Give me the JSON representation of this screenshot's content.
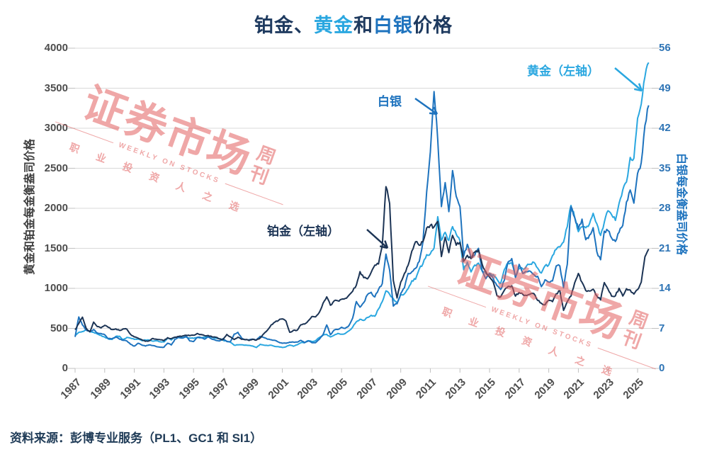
{
  "title": {
    "segments": [
      {
        "text": "铂金、",
        "color": "#1e3a5f"
      },
      {
        "text": "黄金",
        "color": "#2aa7e0"
      },
      {
        "text": "和",
        "color": "#1e3a5f"
      },
      {
        "text": "白银",
        "color": "#1e73be"
      },
      {
        "text": "价格",
        "color": "#1e3a5f"
      }
    ]
  },
  "colors": {
    "platinum": "#1c3455",
    "gold": "#2aa7e0",
    "silver": "#1e73be",
    "grid": "#d9d9d9",
    "axis_line": "#c0c0c0",
    "axis_text": "#4d4d4d",
    "right_axis_text": "#2e74b5",
    "watermark": "#e26060",
    "source_text": "#1f3b57"
  },
  "source": "资料来源：彭博专业服务（PL1、GC1 和 SI1）",
  "watermark": {
    "main": "证券市场",
    "suffix": "周刊",
    "subtitle": "WEEKLY ON STOCKS",
    "tagline": "职业投资人之选"
  },
  "chart_data": {
    "type": "line",
    "title": "铂金、黄金和白银价格",
    "x_start": 1987,
    "x_step_years": 0.25,
    "x_tick_labels": [
      "1987",
      "1989",
      "1991",
      "1993",
      "1995",
      "1997",
      "1999",
      "2001",
      "2003",
      "2005",
      "2007",
      "2009",
      "2011",
      "2013",
      "2015",
      "2017",
      "2019",
      "2021",
      "2023",
      "2025"
    ],
    "left_axis": {
      "label": "黄金和铂金每金衡盎司价格",
      "min": 0,
      "max": 4000,
      "ticks": [
        0,
        500,
        1000,
        1500,
        2000,
        2500,
        3000,
        3500,
        4000
      ]
    },
    "right_axis": {
      "label": "白银每金衡盎司价格",
      "min": 0,
      "max": 56,
      "ticks": [
        0,
        7,
        14,
        21,
        28,
        35,
        42,
        49,
        56
      ]
    },
    "grid": true,
    "series": [
      {
        "name": "铂金（左轴）",
        "axis": "left",
        "color": "#1c3455",
        "values": [
          483,
          560,
          640,
          500,
          458,
          578,
          522,
          505,
          538,
          512,
          486,
          494,
          474,
          494,
          489,
          424,
          394,
          379,
          358,
          339,
          344,
          374,
          364,
          358,
          346,
          384,
          372,
          390,
          399,
          404,
          414,
          409,
          414,
          436,
          424,
          409,
          411,
          394,
          389,
          369,
          359,
          424,
          394,
          361,
          389,
          364,
          359,
          349,
          364,
          354,
          379,
          434,
          479,
          544,
          579,
          601,
          619,
          589,
          451,
          476,
          476,
          544,
          554,
          594,
          649,
          644,
          701,
          814,
          894,
          789,
          844,
          844,
          864,
          874,
          914,
          964,
          1039,
          1209,
          1134,
          1119,
          1199,
          1289,
          1304,
          1529,
          2270,
          2060,
          1100,
          880,
          1078,
          1186,
          1289,
          1466,
          1582,
          1538,
          1581,
          1755,
          1788,
          1768,
          1836,
          1397,
          1639,
          1446,
          1662,
          1539,
          1576,
          1338,
          1412,
          1371,
          1453,
          1480,
          1301,
          1209,
          1139,
          1078,
          908,
          893,
          976,
          1024,
          1032,
          903,
          949,
          924,
          911,
          928,
          934,
          849,
          814,
          794,
          852,
          834,
          932,
          971,
          725,
          835,
          903,
          1068,
          1186,
          1075,
          972,
          966,
          989,
          906,
          856,
          1072,
          991,
          902,
          906,
          1001,
          904,
          996,
          979,
          928,
          983,
          1078,
          1395,
          1492
        ]
      },
      {
        "name": "黄金（左轴）",
        "axis": "left",
        "color": "#2aa7e0",
        "values": [
          408,
          450,
          460,
          485,
          455,
          450,
          430,
          412,
          390,
          368,
          362,
          400,
          402,
          358,
          388,
          378,
          363,
          368,
          348,
          355,
          354,
          340,
          345,
          333,
          330,
          378,
          355,
          390,
          385,
          386,
          391,
          380,
          375,
          387,
          384,
          387,
          400,
          387,
          380,
          369,
          352,
          340,
          325,
          290,
          295,
          296,
          291,
          288,
          280,
          261,
          301,
          290,
          286,
          289,
          274,
          271,
          261,
          271,
          291,
          277,
          295,
          320,
          321,
          346,
          335,
          346,
          385,
          415,
          425,
          393,
          415,
          437,
          427,
          436,
          470,
          516,
          582,
          614,
          599,
          636,
          664,
          651,
          742,
          834,
          968,
          926,
          872,
          815,
          920,
          932,
          996,
          1095,
          1114,
          1242,
          1307,
          1420,
          1432,
          1502,
          1895,
          1600,
          1700,
          1598,
          1771,
          1676,
          1595,
          1232,
          1328,
          1205,
          1291,
          1315,
          1216,
          1184,
          1184,
          1171,
          1114,
          1061,
          1234,
          1321,
          1316,
          1152,
          1249,
          1242,
          1281,
          1303,
          1325,
          1252,
          1192,
          1282,
          1292,
          1410,
          1486,
          1517,
          1577,
          1771,
          2035,
          1888,
          1708,
          1770,
          1757,
          1806,
          1937,
          1807,
          1661,
          1824,
          1969,
          1919,
          1849,
          2063,
          2230,
          2327,
          2635,
          2625,
          3124,
          3303,
          3643,
          3820
        ]
      },
      {
        "name": "白银",
        "axis": "right",
        "color": "#1e73be",
        "values": [
          5.5,
          9.0,
          7.6,
          6.7,
          6.4,
          6.8,
          6.2,
          6.1,
          5.9,
          5.2,
          5.2,
          5.5,
          5.1,
          4.9,
          4.8,
          4.2,
          3.9,
          4.4,
          4.1,
          3.9,
          4.1,
          4.0,
          3.8,
          3.7,
          3.7,
          4.4,
          4.1,
          5.1,
          5.5,
          5.3,
          5.6,
          4.8,
          4.7,
          5.4,
          5.4,
          5.1,
          5.5,
          5.1,
          4.9,
          4.8,
          5.2,
          4.7,
          4.7,
          6.0,
          6.3,
          5.3,
          5.0,
          5.0,
          5.1,
          5.0,
          5.6,
          5.4,
          5.1,
          5.0,
          4.9,
          4.6,
          4.4,
          4.4,
          4.6,
          4.6,
          4.6,
          4.9,
          4.5,
          4.8,
          4.5,
          4.5,
          5.1,
          5.9,
          7.6,
          5.9,
          6.7,
          6.8,
          7.2,
          7.0,
          7.5,
          8.8,
          11.7,
          10.7,
          11.5,
          12.9,
          13.3,
          12.5,
          13.8,
          14.8,
          20.0,
          17.2,
          10.9,
          11.3,
          13.1,
          14.1,
          16.6,
          16.9,
          17.5,
          18.7,
          22.1,
          30.9,
          37.9,
          48.4,
          40.0,
          28.3,
          32.5,
          27.4,
          34.6,
          30.1,
          28.3,
          19.6,
          21.7,
          19.4,
          19.8,
          21.0,
          17.1,
          15.7,
          16.6,
          15.7,
          14.5,
          13.8,
          15.4,
          18.6,
          19.2,
          15.9,
          18.2,
          16.6,
          16.9,
          17.0,
          16.4,
          16.1,
          14.3,
          15.5,
          15.1,
          15.3,
          17.9,
          17.9,
          14.1,
          18.2,
          28.3,
          26.4,
          24.4,
          26.1,
          22.5,
          23.3,
          24.6,
          20.4,
          19.0,
          24.0,
          24.1,
          22.8,
          22.2,
          23.8,
          25.0,
          29.1,
          31.2,
          28.9,
          34.1,
          36.0,
          42.5,
          46.0
        ]
      }
    ],
    "annotations": [
      {
        "text": "铂金（左轴）",
        "series": "铂金（左轴）"
      },
      {
        "text": "黄金（左轴）",
        "series": "黄金（左轴）"
      },
      {
        "text": "白银",
        "series": "白银"
      }
    ],
    "legend_position": "annotations-on-chart"
  }
}
